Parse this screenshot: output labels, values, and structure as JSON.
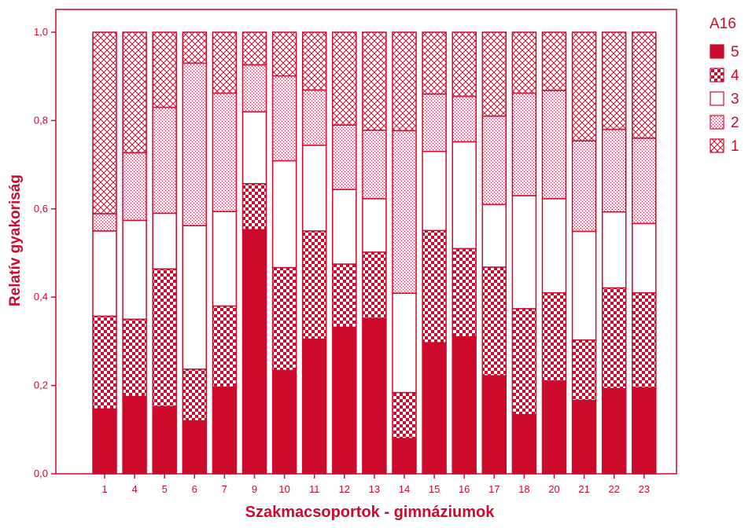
{
  "chart_data": {
    "type": "bar",
    "stacked": true,
    "normalized": true,
    "xlabel": "Szakmacsoportok - gimnáziumok",
    "ylabel": "Relatív gyakoriság",
    "ylim": [
      0,
      1
    ],
    "yticks": [
      "0,0",
      "0,2",
      "0,4",
      "0,6",
      "0,8",
      "1,0"
    ],
    "categories": [
      "1",
      "4",
      "5",
      "6",
      "7",
      "9",
      "10",
      "11",
      "12",
      "13",
      "14",
      "15",
      "16",
      "17",
      "18",
      "20",
      "21",
      "22",
      "23"
    ],
    "legend": {
      "title": "A16",
      "placement": "right"
    },
    "series": [
      {
        "name": "5",
        "pattern": "solid",
        "values": [
          0.147,
          0.175,
          0.152,
          0.12,
          0.196,
          0.553,
          0.234,
          0.305,
          0.332,
          0.352,
          0.08,
          0.297,
          0.31,
          0.222,
          0.134,
          0.21,
          0.166,
          0.193,
          0.195
        ]
      },
      {
        "name": "4",
        "pattern": "checker",
        "values": [
          0.21,
          0.175,
          0.312,
          0.117,
          0.184,
          0.104,
          0.233,
          0.245,
          0.143,
          0.15,
          0.104,
          0.254,
          0.2,
          0.246,
          0.24,
          0.2,
          0.137,
          0.228,
          0.215
        ]
      },
      {
        "name": "3",
        "pattern": "white",
        "values": [
          0.193,
          0.224,
          0.126,
          0.325,
          0.214,
          0.163,
          0.242,
          0.194,
          0.169,
          0.121,
          0.225,
          0.179,
          0.242,
          0.142,
          0.256,
          0.213,
          0.246,
          0.172,
          0.157
        ]
      },
      {
        "name": "2",
        "pattern": "dotted",
        "values": [
          0.039,
          0.153,
          0.24,
          0.368,
          0.268,
          0.106,
          0.192,
          0.125,
          0.146,
          0.155,
          0.368,
          0.13,
          0.103,
          0.2,
          0.232,
          0.245,
          0.205,
          0.187,
          0.193
        ]
      },
      {
        "name": "1",
        "pattern": "crosshatch",
        "values": [
          0.411,
          0.273,
          0.17,
          0.07,
          0.138,
          0.074,
          0.099,
          0.131,
          0.21,
          0.222,
          0.223,
          0.14,
          0.145,
          0.19,
          0.138,
          0.132,
          0.246,
          0.22,
          0.24
        ]
      }
    ]
  },
  "colors": {
    "accent": "#cc0a2b",
    "background": "#ffffff"
  }
}
